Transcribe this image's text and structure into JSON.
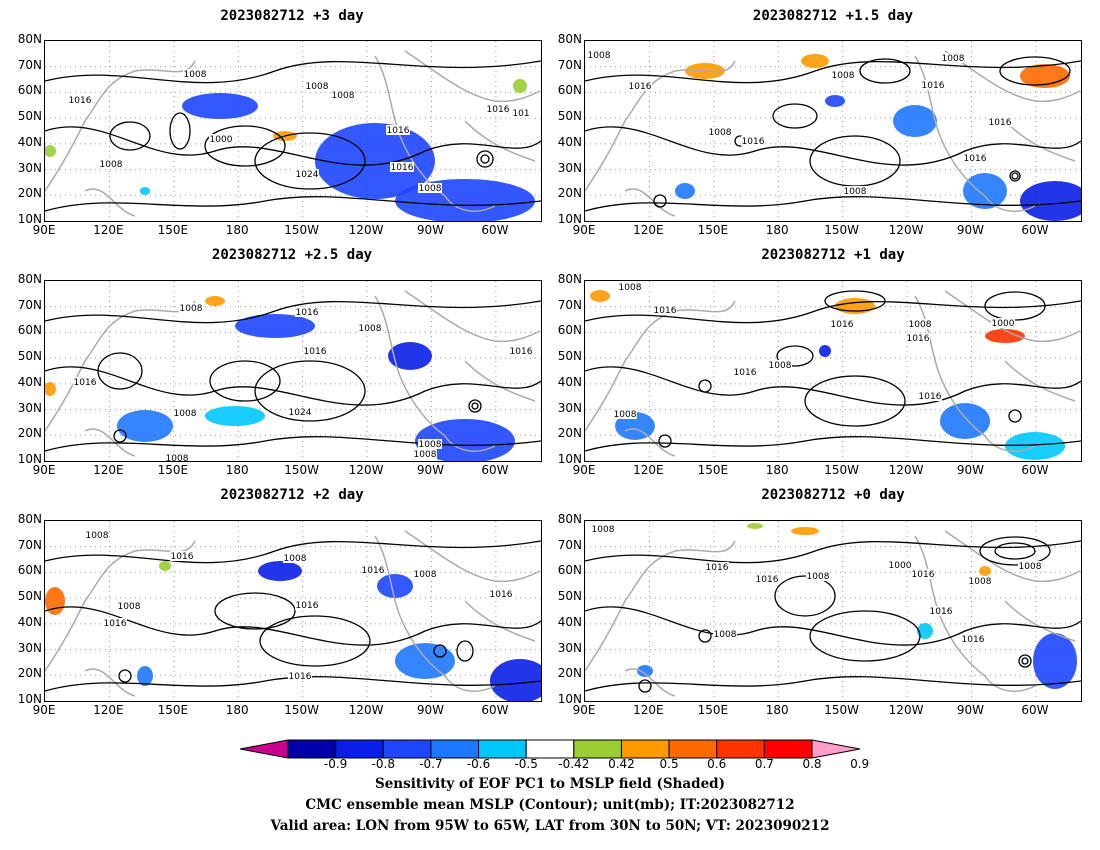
{
  "panels": [
    {
      "title": "2023082712 +3 day",
      "contour_labels": [
        "1008",
        "1016",
        "1008",
        "1008",
        "1016",
        "1000",
        "1024",
        "1016",
        "1008",
        "1008",
        "1016",
        "101"
      ]
    },
    {
      "title": "2023082712 +1.5 day",
      "contour_labels": [
        "1008",
        "1016",
        "1008",
        "1016",
        "1008",
        "1008",
        "1016",
        "1016",
        "1008",
        "1016"
      ]
    },
    {
      "title": "2023082712 +2.5 day",
      "contour_labels": [
        "1008",
        "1008",
        "1016",
        "1008",
        "1016",
        "1016",
        "1024",
        "1008",
        "1008",
        "1016",
        "1008"
      ]
    },
    {
      "title": "2023082712 +1 day",
      "contour_labels": [
        "1008",
        "1016",
        "1008",
        "1016",
        "1016",
        "1008",
        "1000",
        "1016",
        "1016",
        "1008"
      ]
    },
    {
      "title": "2023082712 +2 day",
      "contour_labels": [
        "1008",
        "1016",
        "1008",
        "1016",
        "1016",
        "1008",
        "1016",
        "1008",
        "1016",
        "1016"
      ]
    },
    {
      "title": "2023082712 +0 day",
      "contour_labels": [
        "1008",
        "1016",
        "1008",
        "1016",
        "1008",
        "1000",
        "1016",
        "1008",
        "1016",
        "1016",
        "1008"
      ]
    }
  ],
  "axes": {
    "lat_labels": [
      "80N",
      "70N",
      "60N",
      "50N",
      "40N",
      "30N",
      "20N",
      "10N"
    ],
    "lon_labels": [
      "90E",
      "120E",
      "150E",
      "180",
      "150W",
      "120W",
      "90W",
      "60W"
    ]
  },
  "colorbar": {
    "labels": [
      "-0.9",
      "-0.8",
      "-0.7",
      "-0.6",
      "-0.5",
      "-0.42",
      "0.42",
      "0.5",
      "0.6",
      "0.7",
      "0.8",
      "0.9"
    ],
    "colors": [
      "#0000a8",
      "#0a1fe6",
      "#1e46ff",
      "#1e78ff",
      "#00c8ff",
      "#ffffff",
      "#9acd32",
      "#ff9900",
      "#ff6a00",
      "#ff3300",
      "#ff0000"
    ],
    "low_extreme": "#c8008c",
    "high_extreme": "#ff9ec8"
  },
  "footer": {
    "line1": "Sensitivity of EOF PC1 to MSLP field (Shaded)",
    "line2": "CMC ensemble mean MSLP (Contour); unit(mb); IT:2023082712",
    "line3": "Valid area: LON from 95W to 65W, LAT from 30N to 50N; VT: 2023090212"
  }
}
